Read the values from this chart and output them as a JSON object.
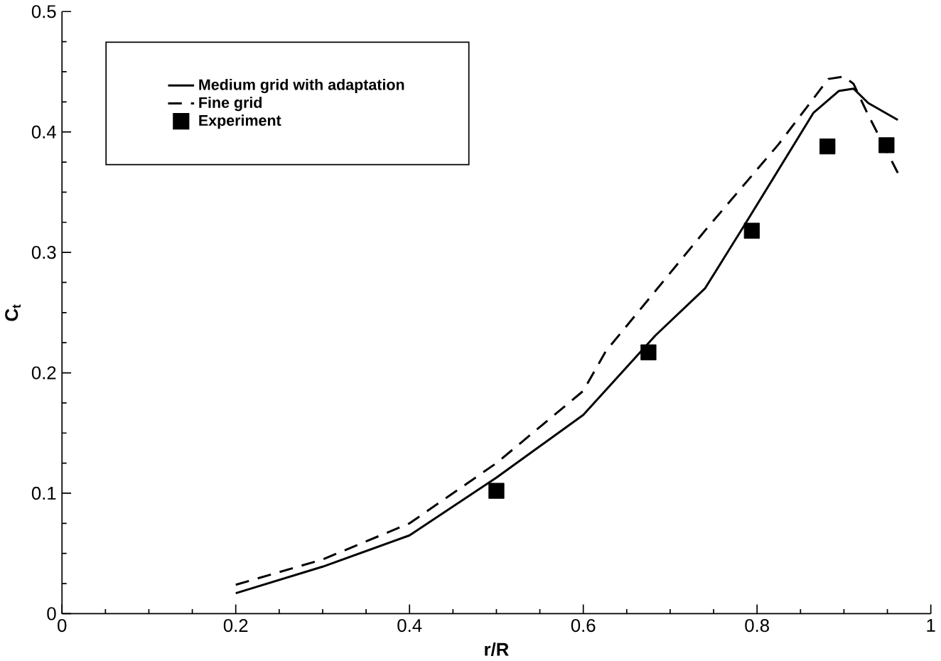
{
  "chart_data": {
    "type": "line",
    "xlabel": "r/R",
    "ylabel": "C$_{t}$",
    "xlim": [
      0,
      1
    ],
    "ylim": [
      0,
      0.5
    ],
    "xticks": [
      0,
      0.2,
      0.4,
      0.6,
      0.8,
      1
    ],
    "yticks": [
      0,
      0.1,
      0.2,
      0.3,
      0.4,
      0.5
    ],
    "legend": "top left",
    "grid": false,
    "series": [
      {
        "name": "Medium grid with adaptation",
        "color": "#000000",
        "line_style": "solid",
        "x": [
          0.2,
          0.3,
          0.4,
          0.5,
          0.6,
          0.683,
          0.74,
          0.785,
          0.865,
          0.894,
          0.911,
          0.928,
          0.962
        ],
        "values": [
          0.017,
          0.039,
          0.065,
          0.113,
          0.165,
          0.231,
          0.27,
          0.322,
          0.416,
          0.434,
          0.436,
          0.424,
          0.41
        ]
      },
      {
        "name": "Fine grid",
        "color": "#000000",
        "line_style": "dashed",
        "x": [
          0.2,
          0.3,
          0.4,
          0.5,
          0.6,
          0.626,
          0.74,
          0.825,
          0.882,
          0.9,
          0.911,
          0.928,
          0.945,
          0.962
        ],
        "values": [
          0.024,
          0.045,
          0.075,
          0.125,
          0.185,
          0.218,
          0.318,
          0.39,
          0.444,
          0.446,
          0.44,
          0.414,
          0.39,
          0.366
        ]
      },
      {
        "name": "Experiment",
        "type": "scatter",
        "marker": "square",
        "color": "#000000",
        "x": [
          0.5,
          0.675,
          0.794,
          0.881,
          0.949
        ],
        "values": [
          0.102,
          0.217,
          0.318,
          0.388,
          0.389
        ]
      }
    ]
  }
}
